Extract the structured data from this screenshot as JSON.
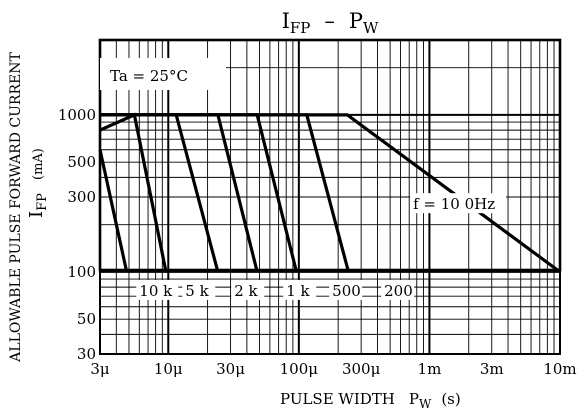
{
  "chart_data": {
    "type": "line",
    "title": "IFP – PW",
    "title_main": "I",
    "title_sub": "FP",
    "title_dash": "–",
    "title_main2": "P",
    "title_sub2": "W",
    "annotation": "Ta = 25°C",
    "xlabel_prefix": "PULSE WIDTH",
    "xlabel_sym": "P",
    "xlabel_sub": "W",
    "xlabel_unit": "(s)",
    "ylabel_line1": "ALLOWABLE PULSE FORWARD CURRENT",
    "ylabel_line2_sym": "I",
    "ylabel_line2_sub": "FP",
    "ylabel_unit": "(mA)",
    "x_scale": "log",
    "y_scale": "log",
    "xlim": [
      3e-06,
      0.01
    ],
    "ylim": [
      30,
      3000
    ],
    "grid": true,
    "x_ticks": [
      {
        "value": 3e-06,
        "label": "3μ"
      },
      {
        "value": 1e-05,
        "label": "10μ"
      },
      {
        "value": 3e-05,
        "label": "30μ"
      },
      {
        "value": 0.0001,
        "label": "100μ"
      },
      {
        "value": 0.0003,
        "label": "300μ"
      },
      {
        "value": 0.001,
        "label": "1m"
      },
      {
        "value": 0.003,
        "label": "3m"
      },
      {
        "value": 0.01,
        "label": "10m"
      }
    ],
    "y_ticks": [
      {
        "value": 1000,
        "label": "1000"
      },
      {
        "value": 500,
        "label": "500"
      },
      {
        "value": 300,
        "label": "300"
      },
      {
        "value": 100,
        "label": "100"
      },
      {
        "value": 50,
        "label": "50"
      },
      {
        "value": 30,
        "label": "30"
      }
    ],
    "series": [
      {
        "name": "10 k",
        "x": [
          3e-06,
          4.8e-06
        ],
        "y": [
          600,
          100
        ]
      },
      {
        "name": "5 k",
        "x": [
          3e-06,
          5.5e-06,
          9.6e-06
        ],
        "y": [
          800,
          1000,
          100
        ]
      },
      {
        "name": "2 k",
        "x": [
          3e-06,
          1.15e-05,
          2.4e-05
        ],
        "y": [
          1000,
          1000,
          100
        ]
      },
      {
        "name": "1 k",
        "x": [
          3e-06,
          2.4e-05,
          4.8e-05
        ],
        "y": [
          1000,
          1000,
          100
        ]
      },
      {
        "name": "500",
        "x": [
          3e-06,
          4.8e-05,
          9.6e-05
        ],
        "y": [
          1000,
          1000,
          100
        ]
      },
      {
        "name": "200",
        "x": [
          3e-06,
          0.000115,
          0.00024
        ],
        "y": [
          1000,
          1000,
          100
        ]
      },
      {
        "name": "f = 100Hz",
        "x": [
          3e-06,
          0.000235,
          0.01
        ],
        "y": [
          1000,
          1000,
          100
        ]
      }
    ],
    "line_labels": [
      {
        "text": "10 k",
        "x": 6e-06,
        "y": 100
      },
      {
        "text": "5 k",
        "x": 1.35e-05,
        "y": 100
      },
      {
        "text": "2 k",
        "x": 3.2e-05,
        "y": 100
      },
      {
        "text": "1 k",
        "x": 8e-05,
        "y": 100
      },
      {
        "text": "500",
        "x": 0.00018,
        "y": 100
      },
      {
        "text": "200",
        "x": 0.00045,
        "y": 100
      },
      {
        "text": "f = 10 0Hz",
        "x": 0.00075,
        "y": 270
      }
    ]
  }
}
